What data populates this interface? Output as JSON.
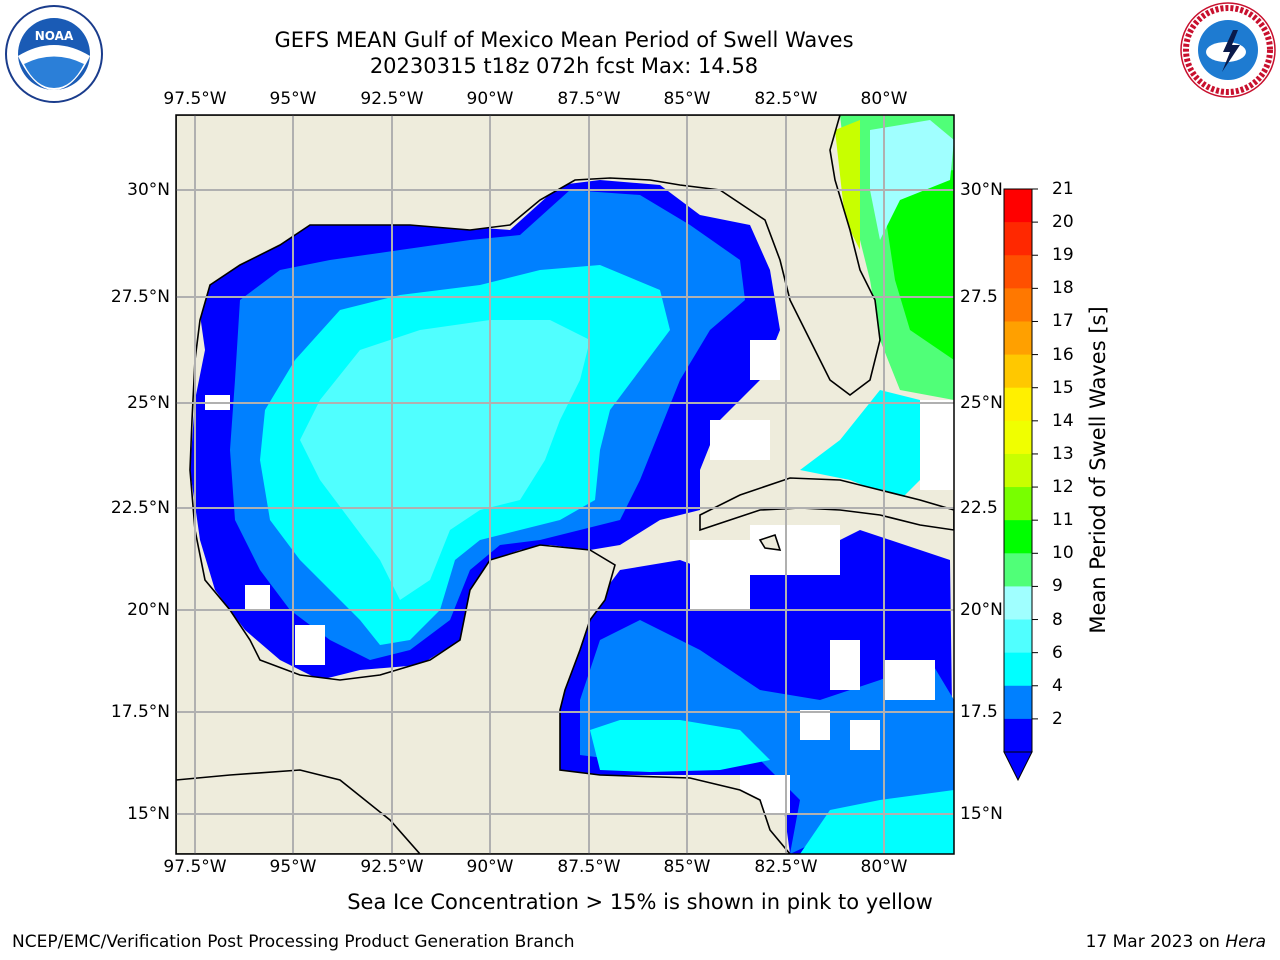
{
  "header": {
    "title_line1": "GEFS MEAN Gulf of Mexico Mean Period of Swell Waves",
    "title_line2": "20230315 t18z 072h fcst   Max: 14.58"
  },
  "logos": {
    "left": "noaa-logo",
    "left_text": "NOAA",
    "right": "nws-logo",
    "right_text": "NATIONAL WEATHER SERVICE"
  },
  "axes": {
    "lon_ticks": [
      "97.5°W",
      "95°W",
      "92.5°W",
      "90°W",
      "87.5°W",
      "85°W",
      "82.5°W",
      "80°W"
    ],
    "lat_ticks_left": [
      "30°N",
      "27.5°N",
      "25°N",
      "22.5°N",
      "20°N",
      "17.5°N",
      "15°N"
    ],
    "lat_ticks_right": [
      "30°N",
      "27.5",
      "25°N",
      "22.5",
      "20°N",
      "17.5",
      "15°N"
    ]
  },
  "colorbar": {
    "label": "Mean Period of Swell Waves [s]",
    "ticks": [
      "21",
      "20",
      "19",
      "18",
      "17",
      "16",
      "15",
      "14",
      "13",
      "12",
      "11",
      "10",
      "9",
      "8",
      "6",
      "4",
      "2"
    ],
    "colors": [
      "#ff0000",
      "#ff2800",
      "#ff5000",
      "#ff7800",
      "#ffa000",
      "#ffc800",
      "#fff000",
      "#f0ff00",
      "#c8ff00",
      "#78ff00",
      "#00ff00",
      "#50ff78",
      "#a0ffff",
      "#50ffff",
      "#00ffff",
      "#0080ff",
      "#0000ff"
    ]
  },
  "map": {
    "land_color": "#eeecdc",
    "grid_color": "#b0b0b0",
    "max_value": 14.58
  },
  "footer": {
    "note": "Sea Ice Concentration > 15% is shown in pink to yellow",
    "credit": "NCEP/EMC/Verification Post Processing Product Generation Branch",
    "date": "17 Mar 2023 on ",
    "host": "Hera"
  }
}
